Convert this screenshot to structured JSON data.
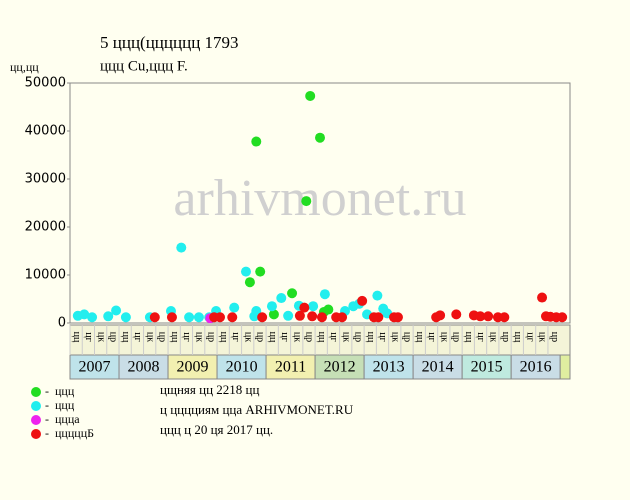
{
  "chart_data": {
    "type": "scatter",
    "title": "5 ццц(цццццц 1793",
    "subtitle": "ццц Cu,ццц F.",
    "y_label": "цц,цц",
    "watermark": "arhivmonet.ru",
    "notes": [
      "цщняя цц 2218 цц",
      "ц цццциям цца ARHIVMONET.RU",
      "ццц ц 20 ця 2017 цц."
    ],
    "xlim": [
      2007,
      2017.2
    ],
    "ylim": [
      0,
      50000
    ],
    "yticks": [
      0,
      10000,
      20000,
      30000,
      40000,
      50000
    ],
    "grid": false,
    "years": [
      {
        "label": "2007",
        "value": 2007,
        "color": "#bfe3ea"
      },
      {
        "label": "2008",
        "value": 2008,
        "color": "#c9dde6"
      },
      {
        "label": "2009",
        "value": 2009,
        "color": "#f2f0b0"
      },
      {
        "label": "2010",
        "value": 2010,
        "color": "#bfe3ea"
      },
      {
        "label": "2011",
        "value": 2011,
        "color": "#f2f0b0"
      },
      {
        "label": "2012",
        "value": 2012,
        "color": "#c6dfb6"
      },
      {
        "label": "2013",
        "value": 2013,
        "color": "#bfe3ea"
      },
      {
        "label": "2014",
        "value": 2014,
        "color": "#c9dde6"
      },
      {
        "label": "2015",
        "value": 2015,
        "color": "#bfeadf"
      },
      {
        "label": "2016",
        "value": 2016,
        "color": "#c9dde6"
      }
    ],
    "quarter_labels": [
      "цц",
      "цг",
      "цк",
      "цр"
    ],
    "series": [
      {
        "name": "ццц",
        "color": "#22dd22",
        "x": [
          2010.8,
          2010.88,
          2010.67,
          2011.53,
          2011.82,
          2011.9,
          2012.1,
          2011.16,
          2012.27,
          2012.18
        ],
        "values": [
          37800,
          10700,
          8500,
          6200,
          25400,
          47300,
          38600,
          1800,
          2800,
          2300
        ]
      },
      {
        "name": "ццц",
        "color": "#22eeee",
        "x": [
          2007.16,
          2007.29,
          2007.45,
          2007.94,
          2008.14,
          2007.78,
          2009.06,
          2009.27,
          2009.43,
          2009.84,
          2009.98,
          2010.35,
          2010.59,
          2010.76,
          2011.12,
          2011.31,
          2011.67,
          2011.96,
          2012.2,
          2012.61,
          2012.78,
          2012.9,
          2013.27,
          2013.39,
          2013.47,
          2009.63,
          2008.63,
          2010.8,
          2011.45,
          2013.06
        ],
        "values": [
          1500,
          1800,
          1200,
          2600,
          1200,
          1400,
          2500,
          15700,
          1200,
          1200,
          2500,
          3200,
          10700,
          1400,
          3500,
          5200,
          3600,
          3500,
          6000,
          2500,
          3500,
          4000,
          5700,
          3000,
          2000,
          1200,
          1200,
          2500,
          1500,
          1800
        ]
      },
      {
        "name": "ццца",
        "color": "#ee22ee",
        "x": [
          2009.86
        ],
        "values": [
          1000
        ]
      },
      {
        "name": "цццццБ",
        "color": "#ee1111",
        "x": [
          2008.73,
          2009.08,
          2009.94,
          2010.06,
          2010.31,
          2010.92,
          2011.69,
          2011.78,
          2011.94,
          2012.14,
          2012.43,
          2012.55,
          2012.96,
          2013.2,
          2013.29,
          2013.61,
          2013.69,
          2014.47,
          2014.55,
          2014.88,
          2015.24,
          2015.37,
          2015.53,
          2015.73,
          2015.86,
          2016.63,
          2016.71,
          2016.8,
          2016.92,
          2017.04
        ],
        "values": [
          1200,
          1200,
          1200,
          1200,
          1200,
          1200,
          1500,
          3200,
          1400,
          1200,
          1200,
          1200,
          4600,
          1200,
          1200,
          1200,
          1200,
          1200,
          1600,
          1800,
          1600,
          1400,
          1400,
          1200,
          1200,
          5300,
          1400,
          1300,
          1200,
          1200
        ]
      }
    ]
  }
}
